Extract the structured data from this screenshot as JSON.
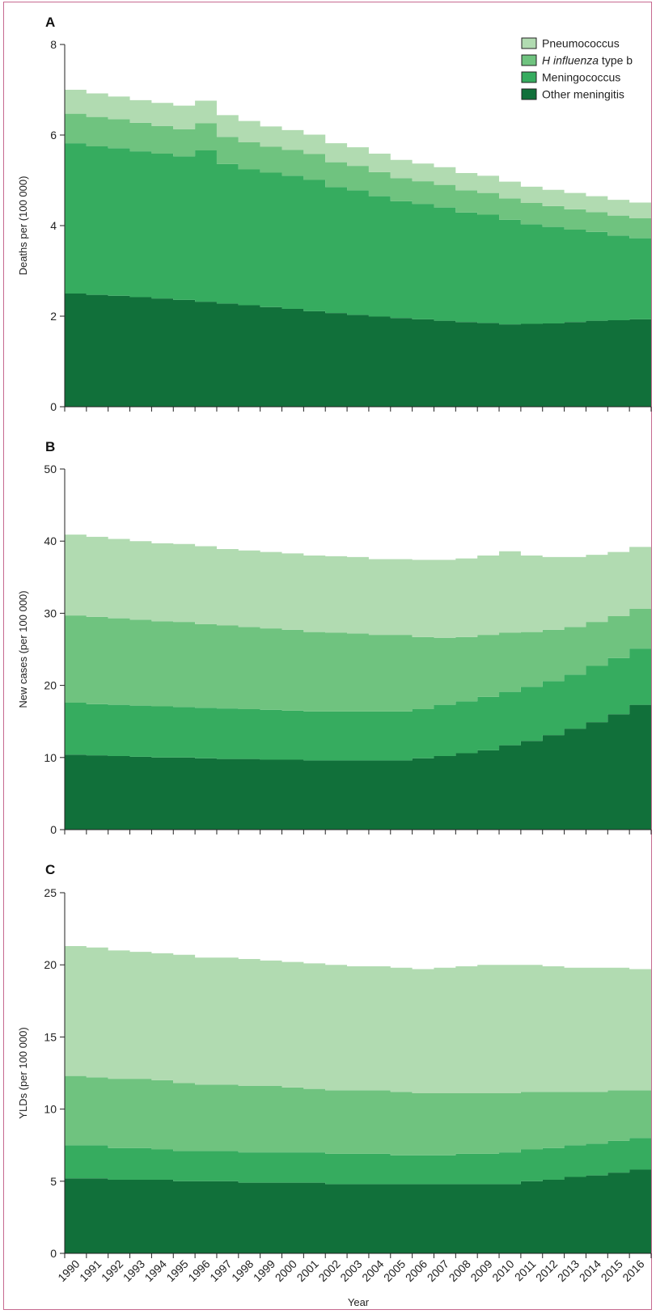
{
  "chart_data": [
    {
      "type": "area",
      "panel": "A",
      "ylabel": "Deaths per (100 000)",
      "xlabel": "",
      "ylim": [
        0,
        8
      ],
      "yticks": [
        0,
        2,
        4,
        6,
        8
      ],
      "categories": [
        "1990",
        "1991",
        "1992",
        "1993",
        "1994",
        "1995",
        "1996",
        "1997",
        "1998",
        "1999",
        "2000",
        "2001",
        "2002",
        "2003",
        "2004",
        "2005",
        "2006",
        "2007",
        "2008",
        "2009",
        "2010",
        "2011",
        "2012",
        "2013",
        "2014",
        "2015",
        "2016"
      ],
      "series": [
        {
          "name": "Other meningitis",
          "values": [
            2.5,
            2.47,
            2.45,
            2.42,
            2.39,
            2.36,
            2.32,
            2.28,
            2.24,
            2.2,
            2.16,
            2.11,
            2.07,
            2.03,
            1.99,
            1.96,
            1.93,
            1.9,
            1.87,
            1.85,
            1.82,
            1.83,
            1.84,
            1.87,
            1.9,
            1.91,
            1.93
          ]
        },
        {
          "name": "Meningococcus",
          "values": [
            3.32,
            3.28,
            3.26,
            3.22,
            3.2,
            3.17,
            3.34,
            3.08,
            3.0,
            2.97,
            2.94,
            2.9,
            2.78,
            2.75,
            2.66,
            2.58,
            2.55,
            2.5,
            2.42,
            2.39,
            2.31,
            2.2,
            2.13,
            2.04,
            1.96,
            1.87,
            1.79
          ]
        },
        {
          "name": "H influenza type b",
          "values": [
            0.65,
            0.65,
            0.64,
            0.63,
            0.61,
            0.6,
            0.6,
            0.6,
            0.6,
            0.57,
            0.57,
            0.57,
            0.55,
            0.54,
            0.53,
            0.51,
            0.5,
            0.5,
            0.49,
            0.48,
            0.47,
            0.47,
            0.46,
            0.45,
            0.44,
            0.44,
            0.44
          ]
        },
        {
          "name": "Pneumococcus",
          "values": [
            0.53,
            0.52,
            0.5,
            0.5,
            0.51,
            0.52,
            0.5,
            0.48,
            0.47,
            0.45,
            0.44,
            0.43,
            0.42,
            0.41,
            0.41,
            0.4,
            0.39,
            0.39,
            0.38,
            0.38,
            0.37,
            0.36,
            0.36,
            0.36,
            0.35,
            0.35,
            0.35
          ]
        }
      ]
    },
    {
      "type": "area",
      "panel": "B",
      "ylabel": "New cases (per 100 000)",
      "xlabel": "",
      "ylim": [
        0,
        50
      ],
      "yticks": [
        0,
        10,
        20,
        30,
        40,
        50
      ],
      "categories": [
        "1990",
        "1991",
        "1992",
        "1993",
        "1994",
        "1995",
        "1996",
        "1997",
        "1998",
        "1999",
        "2000",
        "2001",
        "2002",
        "2003",
        "2004",
        "2005",
        "2006",
        "2007",
        "2008",
        "2009",
        "2010",
        "2011",
        "2012",
        "2013",
        "2014",
        "2015",
        "2016"
      ],
      "series": [
        {
          "name": "Other meningitis",
          "values": [
            10.4,
            10.3,
            10.2,
            10.1,
            10.0,
            10.0,
            9.9,
            9.8,
            9.8,
            9.7,
            9.7,
            9.6,
            9.6,
            9.6,
            9.6,
            9.6,
            9.9,
            10.2,
            10.6,
            11.0,
            11.7,
            12.3,
            13.1,
            14.0,
            14.9,
            16.0,
            17.3
          ]
        },
        {
          "name": "Meningococcus",
          "values": [
            7.2,
            7.1,
            7.1,
            7.1,
            7.1,
            7.0,
            7.0,
            7.0,
            6.9,
            6.9,
            6.8,
            6.8,
            6.8,
            6.8,
            6.8,
            6.8,
            6.8,
            7.1,
            7.2,
            7.4,
            7.4,
            7.5,
            7.5,
            7.5,
            7.8,
            7.8,
            7.8
          ]
        },
        {
          "name": "H influenza type b",
          "values": [
            12.1,
            12.1,
            12.0,
            11.9,
            11.8,
            11.8,
            11.6,
            11.5,
            11.4,
            11.3,
            11.2,
            11.0,
            10.9,
            10.8,
            10.6,
            10.6,
            10.0,
            9.3,
            8.9,
            8.6,
            8.2,
            7.6,
            7.1,
            6.6,
            6.1,
            5.8,
            5.5
          ]
        },
        {
          "name": "Pneumococcus",
          "values": [
            11.2,
            11.1,
            11.0,
            10.9,
            10.8,
            10.8,
            10.8,
            10.6,
            10.6,
            10.6,
            10.6,
            10.6,
            10.6,
            10.6,
            10.5,
            10.5,
            10.7,
            10.8,
            10.9,
            11.0,
            11.3,
            10.6,
            10.1,
            9.7,
            9.3,
            8.9,
            8.6
          ]
        }
      ]
    },
    {
      "type": "area",
      "panel": "C",
      "ylabel": "YLDs (per 100 000)",
      "xlabel": "Year",
      "ylim": [
        0,
        25
      ],
      "yticks": [
        0,
        5,
        10,
        15,
        20,
        25
      ],
      "categories": [
        "1990",
        "1991",
        "1992",
        "1993",
        "1994",
        "1995",
        "1996",
        "1997",
        "1998",
        "1999",
        "2000",
        "2001",
        "2002",
        "2003",
        "2004",
        "2005",
        "2006",
        "2007",
        "2008",
        "2009",
        "2010",
        "2011",
        "2012",
        "2013",
        "2014",
        "2015",
        "2016"
      ],
      "series": [
        {
          "name": "Other meningitis",
          "values": [
            5.2,
            5.2,
            5.1,
            5.1,
            5.1,
            5.0,
            5.0,
            5.0,
            4.9,
            4.9,
            4.9,
            4.9,
            4.8,
            4.8,
            4.8,
            4.8,
            4.8,
            4.8,
            4.8,
            4.8,
            4.8,
            5.0,
            5.1,
            5.3,
            5.4,
            5.6,
            5.8
          ]
        },
        {
          "name": "Meningococcus",
          "values": [
            2.3,
            2.3,
            2.2,
            2.2,
            2.1,
            2.1,
            2.1,
            2.1,
            2.1,
            2.1,
            2.1,
            2.1,
            2.1,
            2.1,
            2.1,
            2.0,
            2.0,
            2.0,
            2.1,
            2.1,
            2.2,
            2.2,
            2.2,
            2.2,
            2.2,
            2.2,
            2.2
          ]
        },
        {
          "name": "H influenza type b",
          "values": [
            4.8,
            4.7,
            4.8,
            4.8,
            4.8,
            4.7,
            4.6,
            4.6,
            4.6,
            4.6,
            4.5,
            4.4,
            4.4,
            4.4,
            4.4,
            4.4,
            4.3,
            4.3,
            4.2,
            4.2,
            4.1,
            4.0,
            3.9,
            3.7,
            3.6,
            3.5,
            3.3
          ]
        },
        {
          "name": "Pneumococcus",
          "values": [
            9.0,
            9.0,
            8.9,
            8.8,
            8.8,
            8.9,
            8.8,
            8.8,
            8.8,
            8.7,
            8.7,
            8.7,
            8.7,
            8.6,
            8.6,
            8.6,
            8.6,
            8.7,
            8.8,
            8.9,
            8.9,
            8.8,
            8.7,
            8.6,
            8.6,
            8.5,
            8.4
          ]
        }
      ]
    }
  ],
  "legend": {
    "placement": "top-right",
    "entries": [
      {
        "label": "Pneumococcus",
        "italic": "",
        "rest": "Pneumococcus",
        "color": "#b1dbb1"
      },
      {
        "label": "H influenza type b",
        "italic": "H influenza",
        "rest": " type b",
        "color": "#6fc37f"
      },
      {
        "label": "Meningococcus",
        "italic": "",
        "rest": "Meningococcus",
        "color": "#36ac5f"
      },
      {
        "label": "Other meningitis",
        "italic": "",
        "rest": "Other meningitis",
        "color": "#11703a"
      }
    ]
  },
  "colors": {
    "Other meningitis": "#11703a",
    "Meningococcus": "#36ac5f",
    "H influenza type b": "#6fc37f",
    "Pneumococcus": "#b1dbb1",
    "frame": "#c66a90"
  }
}
